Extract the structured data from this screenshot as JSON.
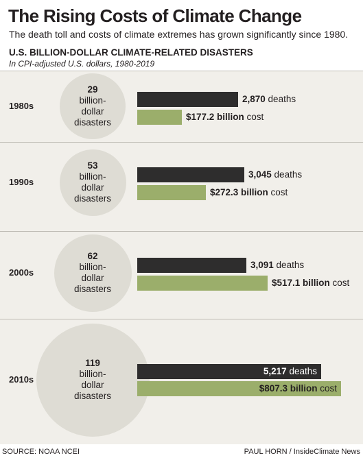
{
  "title": "The Rising Costs of Climate Change",
  "subtitle": "The death toll and costs of climate extremes has grown significantly since 1980.",
  "heading": "U.S. BILLION-DOLLAR CLIMATE-RELATED DISASTERS",
  "note": "In CPI-adjusted U.S. dollars, 1980-2019",
  "colors": {
    "deaths": "#2e2d2d",
    "cost": "#9bae6b",
    "panel": "#f1efea",
    "circle": "#dedcd4"
  },
  "chart_data": {
    "type": "bar",
    "categories": [
      "1980s",
      "1990s",
      "2000s",
      "2010s"
    ],
    "disaster_counts": [
      29,
      53,
      62,
      119
    ],
    "disaster_label": "billion-dollar disasters",
    "series": [
      {
        "name": "deaths",
        "values": [
          2870,
          3045,
          3091,
          5217
        ]
      },
      {
        "name": "cost",
        "values": [
          177.2,
          272.3,
          517.1,
          807.3
        ]
      }
    ],
    "rows": [
      {
        "decade": "1980s",
        "disasters": "29",
        "line1": "billion-",
        "line2": "dollar",
        "line3": "disasters",
        "deaths": 2870,
        "deaths_text": "2,870",
        "deaths_unit": " deaths",
        "cost": 177.2,
        "cost_text": "$177.2 billion",
        "cost_unit": " cost"
      },
      {
        "decade": "1990s",
        "disasters": "53",
        "line1": "billion-",
        "line2": "dollar",
        "line3": "disasters",
        "deaths": 3045,
        "deaths_text": "3,045",
        "deaths_unit": " deaths",
        "cost": 272.3,
        "cost_text": "$272.3 billion",
        "cost_unit": " cost"
      },
      {
        "decade": "2000s",
        "disasters": "62",
        "line1": "billion-",
        "line2": "dollar",
        "line3": "disasters",
        "deaths": 3091,
        "deaths_text": "3,091",
        "deaths_unit": " deaths",
        "cost": 517.1,
        "cost_text": "$517.1 billion",
        "cost_unit": " cost"
      },
      {
        "decade": "2010s",
        "disasters": "119",
        "line1": "billion-",
        "line2": "dollar",
        "line3": "disasters",
        "deaths": 5217,
        "deaths_text": "5,217",
        "deaths_unit": " deaths",
        "cost": 807.3,
        "cost_text": "$807.3 billion",
        "cost_unit": " cost"
      }
    ]
  },
  "footer": {
    "source": "SOURCE: NOAA NCEI",
    "credit": "PAUL HORN / InsideClimate News"
  }
}
